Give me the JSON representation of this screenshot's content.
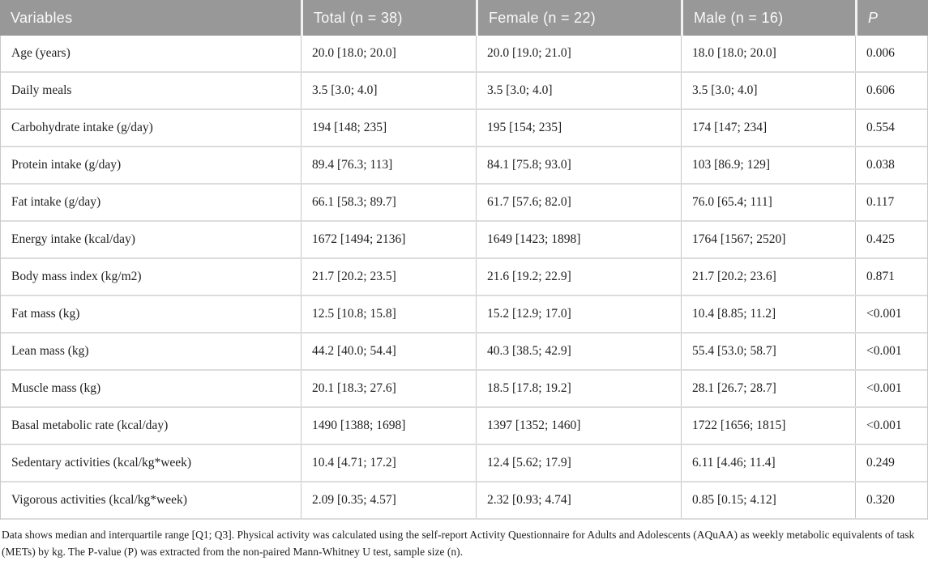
{
  "colors": {
    "header_bg": "#989898",
    "header_text": "#fafafa",
    "row_divider": "#dcdcdc",
    "column_divider": "#c6c6c6",
    "body_text": "#1f1f1f"
  },
  "table": {
    "columns": [
      "Variables",
      "Total (n = 38)",
      "Female (n = 22)",
      "Male (n = 16)",
      "P"
    ],
    "rows": [
      {
        "variable": "Age (years)",
        "total": "20.0 [18.0; 20.0]",
        "female": "20.0 [19.0; 21.0]",
        "male": "18.0 [18.0; 20.0]",
        "p": "0.006"
      },
      {
        "variable": "Daily meals",
        "total": "3.5 [3.0; 4.0]",
        "female": "3.5 [3.0; 4.0]",
        "male": "3.5 [3.0; 4.0]",
        "p": "0.606"
      },
      {
        "variable": "Carbohydrate intake (g/day)",
        "total": "194 [148; 235]",
        "female": "195 [154; 235]",
        "male": "174 [147; 234]",
        "p": "0.554"
      },
      {
        "variable": "Protein intake (g/day)",
        "total": "89.4 [76.3; 113]",
        "female": "84.1 [75.8; 93.0]",
        "male": "103 [86.9; 129]",
        "p": "0.038"
      },
      {
        "variable": "Fat intake (g/day)",
        "total": "66.1 [58.3; 89.7]",
        "female": "61.7 [57.6; 82.0]",
        "male": "76.0 [65.4; 111]",
        "p": "0.117"
      },
      {
        "variable": "Energy intake (kcal/day)",
        "total": "1672 [1494; 2136]",
        "female": "1649 [1423; 1898]",
        "male": "1764 [1567; 2520]",
        "p": "0.425"
      },
      {
        "variable": "Body mass index (kg/m2)",
        "total": "21.7 [20.2; 23.5]",
        "female": "21.6 [19.2; 22.9]",
        "male": "21.7 [20.2; 23.6]",
        "p": "0.871"
      },
      {
        "variable": "Fat mass (kg)",
        "total": "12.5 [10.8; 15.8]",
        "female": "15.2 [12.9; 17.0]",
        "male": "10.4 [8.85; 11.2]",
        "p": "<0.001"
      },
      {
        "variable": "Lean mass (kg)",
        "total": "44.2 [40.0; 54.4]",
        "female": "40.3 [38.5; 42.9]",
        "male": "55.4 [53.0; 58.7]",
        "p": "<0.001"
      },
      {
        "variable": "Muscle mass (kg)",
        "total": "20.1 [18.3; 27.6]",
        "female": "18.5 [17.8; 19.2]",
        "male": "28.1 [26.7; 28.7]",
        "p": "<0.001"
      },
      {
        "variable": "Basal metabolic rate (kcal/day)",
        "total": "1490 [1388; 1698]",
        "female": "1397 [1352; 1460]",
        "male": "1722 [1656; 1815]",
        "p": "<0.001"
      },
      {
        "variable": "Sedentary activities (kcal/kg*week)",
        "total": "10.4 [4.71; 17.2]",
        "female": "12.4 [5.62; 17.9]",
        "male": "6.11 [4.46; 11.4]",
        "p": "0.249"
      },
      {
        "variable": "Vigorous activities (kcal/kg*week)",
        "total": "2.09 [0.35; 4.57]",
        "female": "2.32 [0.93; 4.74]",
        "male": "0.85 [0.15; 4.12]",
        "p": "0.320"
      }
    ]
  },
  "footnote": "Data shows median and interquartile range [Q1; Q3]. Physical activity was calculated using the self-report Activity Questionnaire for Adults and Adolescents (AQuAA) as weekly metabolic equivalents of task (METs) by kg. The P-value (P) was extracted from the non-paired Mann-Whitney U test, sample size (n)."
}
